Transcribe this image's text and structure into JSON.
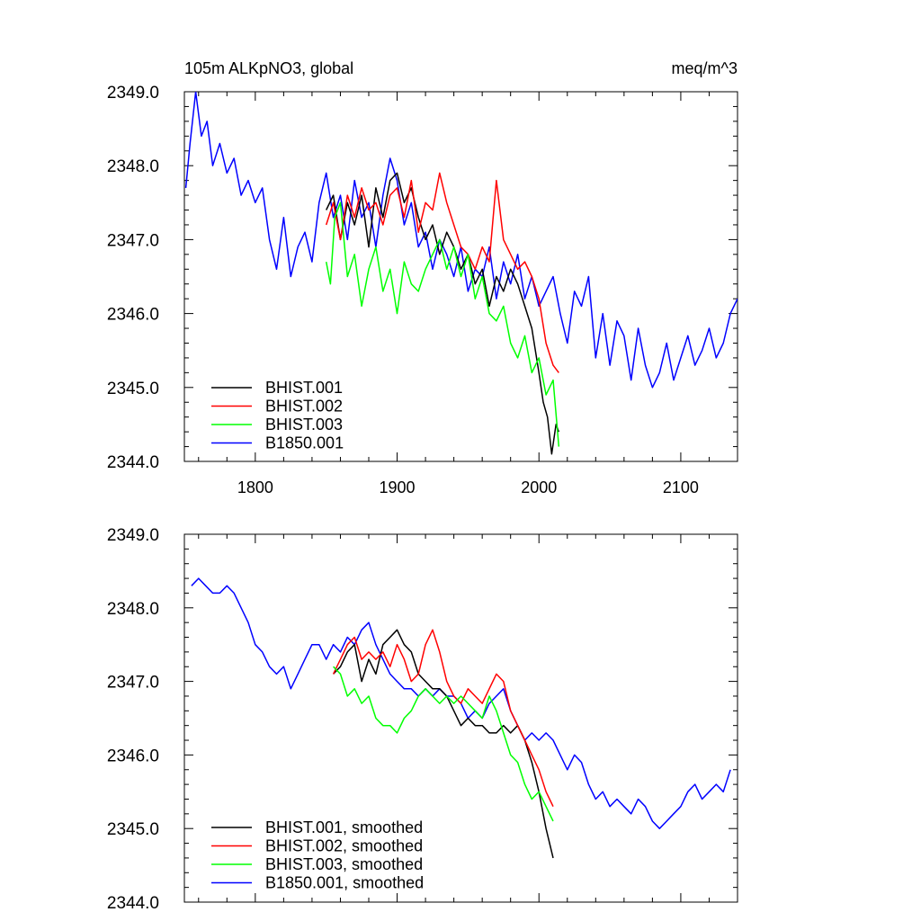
{
  "header": {
    "left_title": "105m ALKpNO3, global",
    "right_title": "meq/m^3"
  },
  "chart_data": [
    {
      "type": "line",
      "xlim": [
        1750,
        2140
      ],
      "ylim": [
        2344.0,
        2349.0
      ],
      "x_ticks": [
        1800,
        1900,
        2000,
        2100
      ],
      "x_tick_labels": [
        "1800",
        "1900",
        "2000",
        "2100"
      ],
      "y_ticks": [
        2344.0,
        2345.0,
        2346.0,
        2347.0,
        2348.0,
        2349.0
      ],
      "y_tick_labels": [
        "2344.0",
        "2345.0",
        "2346.0",
        "2347.0",
        "2348.0",
        "2349.0"
      ],
      "legend_position": "bottom-left",
      "grid": false,
      "series": [
        {
          "name": "BHIST.001",
          "color": "#000000",
          "x": [
            1850,
            1855,
            1860,
            1865,
            1870,
            1875,
            1880,
            1885,
            1890,
            1895,
            1900,
            1905,
            1910,
            1915,
            1920,
            1925,
            1930,
            1935,
            1940,
            1945,
            1950,
            1955,
            1960,
            1965,
            1970,
            1975,
            1980,
            1985,
            1990,
            1995,
            2000,
            2003,
            2006,
            2009,
            2012,
            2014
          ],
          "y": [
            2347.4,
            2347.6,
            2347.0,
            2347.5,
            2347.2,
            2347.6,
            2346.9,
            2347.7,
            2347.3,
            2347.8,
            2347.9,
            2347.5,
            2347.7,
            2347.3,
            2347.0,
            2347.2,
            2346.8,
            2347.1,
            2346.9,
            2346.6,
            2346.8,
            2346.4,
            2346.6,
            2346.1,
            2346.5,
            2346.3,
            2346.6,
            2346.4,
            2346.1,
            2345.8,
            2345.2,
            2344.8,
            2344.6,
            2344.1,
            2344.5,
            2344.4
          ]
        },
        {
          "name": "BHIST.002",
          "color": "#ff0000",
          "x": [
            1850,
            1855,
            1860,
            1865,
            1870,
            1875,
            1880,
            1885,
            1890,
            1895,
            1900,
            1905,
            1910,
            1915,
            1920,
            1925,
            1930,
            1935,
            1940,
            1945,
            1950,
            1955,
            1960,
            1965,
            1970,
            1975,
            1980,
            1985,
            1990,
            1995,
            2000,
            2005,
            2010,
            2014
          ],
          "y": [
            2347.2,
            2347.5,
            2347.0,
            2347.6,
            2347.3,
            2347.7,
            2347.4,
            2347.5,
            2347.2,
            2347.6,
            2347.7,
            2347.3,
            2347.8,
            2347.1,
            2347.5,
            2347.4,
            2347.9,
            2347.5,
            2347.2,
            2346.9,
            2346.8,
            2346.6,
            2346.9,
            2346.7,
            2347.8,
            2347.0,
            2346.8,
            2346.6,
            2346.7,
            2346.5,
            2346.2,
            2345.6,
            2345.3,
            2345.2
          ]
        },
        {
          "name": "BHIST.003",
          "color": "#00ff00",
          "x": [
            1850,
            1853,
            1856,
            1860,
            1865,
            1870,
            1875,
            1880,
            1885,
            1890,
            1895,
            1900,
            1905,
            1910,
            1915,
            1920,
            1925,
            1930,
            1935,
            1940,
            1945,
            1950,
            1955,
            1960,
            1965,
            1970,
            1975,
            1980,
            1985,
            1990,
            1995,
            2000,
            2005,
            2010,
            2014
          ],
          "y": [
            2346.7,
            2346.4,
            2347.3,
            2347.5,
            2346.5,
            2346.8,
            2346.1,
            2346.6,
            2346.9,
            2346.3,
            2346.6,
            2346.0,
            2346.7,
            2346.4,
            2346.3,
            2346.6,
            2346.8,
            2347.0,
            2346.6,
            2346.9,
            2346.5,
            2346.8,
            2346.2,
            2346.5,
            2346.0,
            2345.9,
            2346.1,
            2345.6,
            2345.4,
            2345.7,
            2345.2,
            2345.4,
            2344.9,
            2345.1,
            2344.2
          ]
        },
        {
          "name": "B1850.001",
          "color": "#0000ff",
          "x": [
            1751,
            1754,
            1758,
            1762,
            1766,
            1770,
            1775,
            1780,
            1785,
            1790,
            1795,
            1800,
            1805,
            1810,
            1815,
            1820,
            1825,
            1830,
            1835,
            1840,
            1845,
            1850,
            1855,
            1860,
            1865,
            1870,
            1875,
            1880,
            1885,
            1890,
            1895,
            1900,
            1905,
            1910,
            1915,
            1920,
            1925,
            1930,
            1935,
            1940,
            1945,
            1950,
            1955,
            1960,
            1965,
            1970,
            1975,
            1980,
            1985,
            1990,
            1995,
            2000,
            2005,
            2010,
            2015,
            2020,
            2025,
            2030,
            2035,
            2040,
            2045,
            2050,
            2055,
            2060,
            2065,
            2070,
            2075,
            2080,
            2085,
            2090,
            2095,
            2100,
            2105,
            2110,
            2115,
            2120,
            2125,
            2130,
            2135,
            2140
          ],
          "y": [
            2347.7,
            2348.3,
            2349.0,
            2348.4,
            2348.6,
            2348.0,
            2348.3,
            2347.9,
            2348.1,
            2347.6,
            2347.8,
            2347.5,
            2347.7,
            2347.0,
            2346.6,
            2347.3,
            2346.5,
            2346.9,
            2347.1,
            2346.7,
            2347.5,
            2347.9,
            2347.3,
            2347.6,
            2347.0,
            2347.8,
            2347.3,
            2347.5,
            2346.9,
            2347.6,
            2348.1,
            2347.8,
            2347.2,
            2347.5,
            2346.9,
            2347.1,
            2346.6,
            2347.0,
            2346.8,
            2346.5,
            2346.9,
            2346.3,
            2346.6,
            2346.5,
            2346.9,
            2346.2,
            2346.7,
            2346.4,
            2346.8,
            2346.2,
            2346.5,
            2346.1,
            2346.3,
            2346.5,
            2346.0,
            2345.6,
            2346.3,
            2346.1,
            2346.5,
            2345.4,
            2346.0,
            2345.3,
            2345.9,
            2345.7,
            2345.1,
            2345.8,
            2345.3,
            2345.0,
            2345.2,
            2345.6,
            2345.1,
            2345.4,
            2345.7,
            2345.3,
            2345.5,
            2345.8,
            2345.4,
            2345.6,
            2346.0,
            2346.2
          ]
        }
      ]
    },
    {
      "type": "line",
      "xlim": [
        1750,
        2140
      ],
      "ylim": [
        2344.0,
        2349.0
      ],
      "y_ticks": [
        2344.0,
        2345.0,
        2346.0,
        2347.0,
        2348.0,
        2349.0
      ],
      "y_tick_labels": [
        "2344.0",
        "2345.0",
        "2346.0",
        "2347.0",
        "2348.0",
        "2349.0"
      ],
      "legend_position": "bottom-left",
      "grid": false,
      "series": [
        {
          "name": "BHIST.001, smoothed",
          "color": "#000000",
          "x": [
            1855,
            1860,
            1865,
            1870,
            1875,
            1880,
            1885,
            1890,
            1895,
            1900,
            1905,
            1910,
            1915,
            1920,
            1925,
            1930,
            1935,
            1940,
            1945,
            1950,
            1955,
            1960,
            1965,
            1970,
            1975,
            1980,
            1985,
            1990,
            1995,
            2000,
            2005,
            2010
          ],
          "y": [
            2347.1,
            2347.2,
            2347.4,
            2347.5,
            2347.0,
            2347.3,
            2347.1,
            2347.5,
            2347.6,
            2347.7,
            2347.5,
            2347.4,
            2347.1,
            2347.0,
            2346.9,
            2346.9,
            2346.8,
            2346.6,
            2346.4,
            2346.5,
            2346.4,
            2346.4,
            2346.3,
            2346.3,
            2346.4,
            2346.3,
            2346.4,
            2346.2,
            2345.9,
            2345.5,
            2345.0,
            2344.6
          ]
        },
        {
          "name": "BHIST.002, smoothed",
          "color": "#ff0000",
          "x": [
            1855,
            1860,
            1865,
            1870,
            1875,
            1880,
            1885,
            1890,
            1895,
            1900,
            1905,
            1910,
            1915,
            1920,
            1925,
            1930,
            1935,
            1940,
            1945,
            1950,
            1955,
            1960,
            1965,
            1970,
            1975,
            1980,
            1985,
            1990,
            1995,
            2000,
            2005,
            2010
          ],
          "y": [
            2347.1,
            2347.3,
            2347.5,
            2347.6,
            2347.3,
            2347.4,
            2347.3,
            2347.4,
            2347.2,
            2347.5,
            2347.3,
            2347.0,
            2347.1,
            2347.5,
            2347.7,
            2347.4,
            2347.0,
            2346.8,
            2346.7,
            2346.9,
            2346.8,
            2346.7,
            2346.9,
            2347.1,
            2347.0,
            2346.6,
            2346.4,
            2346.2,
            2346.0,
            2345.8,
            2345.5,
            2345.3
          ]
        },
        {
          "name": "BHIST.003, smoothed",
          "color": "#00ff00",
          "x": [
            1855,
            1860,
            1865,
            1870,
            1875,
            1880,
            1885,
            1890,
            1895,
            1900,
            1905,
            1910,
            1915,
            1920,
            1925,
            1930,
            1935,
            1940,
            1945,
            1950,
            1955,
            1960,
            1965,
            1970,
            1975,
            1980,
            1985,
            1990,
            1995,
            2000,
            2005,
            2010
          ],
          "y": [
            2347.2,
            2347.1,
            2346.8,
            2346.9,
            2346.7,
            2346.8,
            2346.5,
            2346.4,
            2346.4,
            2346.3,
            2346.5,
            2346.6,
            2346.8,
            2346.9,
            2346.8,
            2346.7,
            2346.8,
            2346.7,
            2346.8,
            2346.7,
            2346.6,
            2346.5,
            2346.8,
            2346.6,
            2346.3,
            2346.0,
            2345.9,
            2345.6,
            2345.4,
            2345.5,
            2345.3,
            2345.1
          ]
        },
        {
          "name": "B1850.001, smoothed",
          "color": "#0000ff",
          "x": [
            1755,
            1760,
            1765,
            1770,
            1775,
            1780,
            1785,
            1790,
            1795,
            1800,
            1805,
            1810,
            1815,
            1820,
            1825,
            1830,
            1835,
            1840,
            1845,
            1850,
            1855,
            1860,
            1865,
            1870,
            1875,
            1880,
            1885,
            1890,
            1895,
            1900,
            1905,
            1910,
            1915,
            1920,
            1925,
            1930,
            1935,
            1940,
            1945,
            1950,
            1955,
            1960,
            1965,
            1970,
            1975,
            1980,
            1985,
            1990,
            1995,
            2000,
            2005,
            2010,
            2015,
            2020,
            2025,
            2030,
            2035,
            2040,
            2045,
            2050,
            2055,
            2060,
            2065,
            2070,
            2075,
            2080,
            2085,
            2090,
            2095,
            2100,
            2105,
            2110,
            2115,
            2120,
            2125,
            2130,
            2135
          ],
          "y": [
            2348.3,
            2348.4,
            2348.3,
            2348.2,
            2348.2,
            2348.3,
            2348.2,
            2348.0,
            2347.8,
            2347.5,
            2347.4,
            2347.2,
            2347.1,
            2347.2,
            2346.9,
            2347.1,
            2347.3,
            2347.5,
            2347.5,
            2347.3,
            2347.5,
            2347.4,
            2347.6,
            2347.5,
            2347.7,
            2347.8,
            2347.5,
            2347.3,
            2347.1,
            2347.0,
            2346.9,
            2346.9,
            2346.8,
            2346.9,
            2346.8,
            2346.9,
            2346.8,
            2346.8,
            2346.7,
            2346.5,
            2346.6,
            2346.5,
            2346.7,
            2346.8,
            2346.9,
            2346.6,
            2346.4,
            2346.2,
            2346.3,
            2346.2,
            2346.3,
            2346.2,
            2346.0,
            2345.8,
            2346.0,
            2345.9,
            2345.6,
            2345.4,
            2345.5,
            2345.3,
            2345.4,
            2345.3,
            2345.2,
            2345.4,
            2345.3,
            2345.1,
            2345.0,
            2345.1,
            2345.2,
            2345.3,
            2345.5,
            2345.6,
            2345.4,
            2345.5,
            2345.6,
            2345.5,
            2345.8
          ]
        }
      ]
    }
  ]
}
